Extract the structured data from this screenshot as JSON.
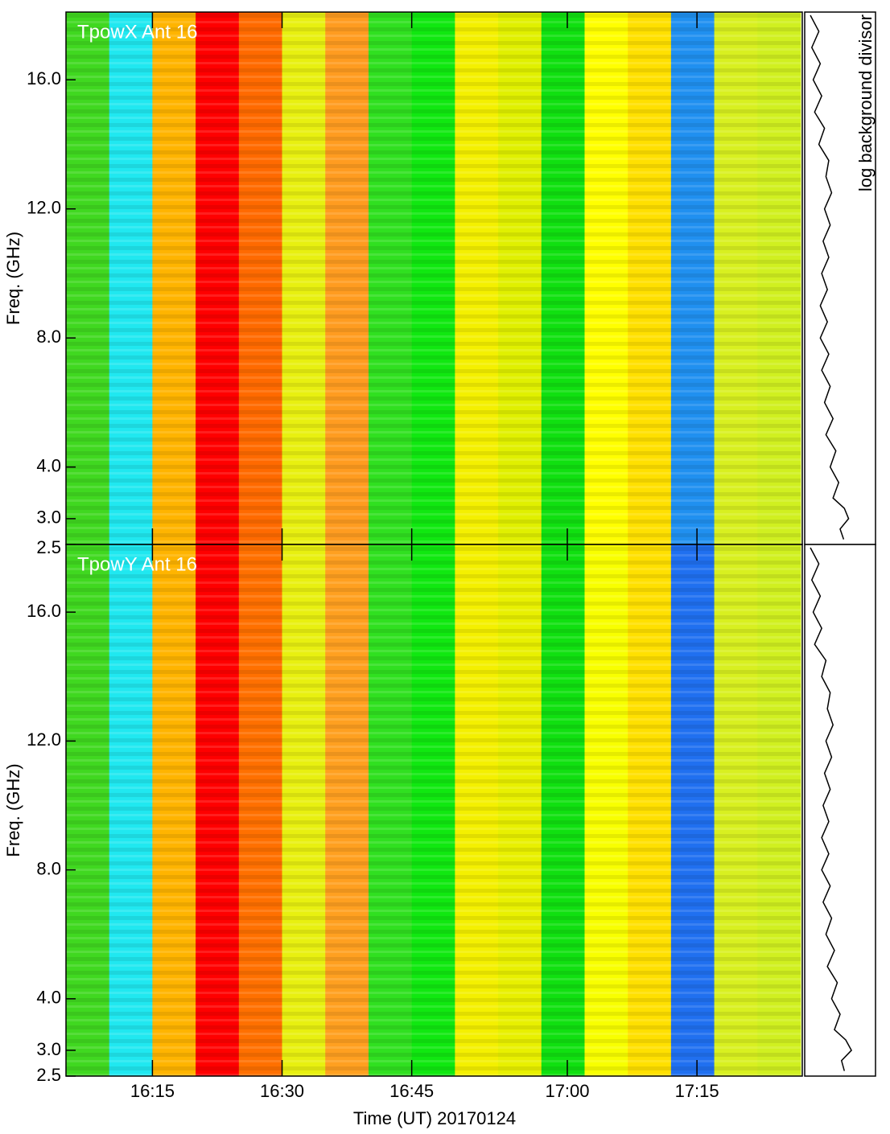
{
  "chart_data": {
    "type": "heatmap",
    "xlabel": "Time (UT) 20170124",
    "ylabel": "Freq. (GHz)",
    "profile_label": "log background divisor",
    "xlim": [
      0,
      17
    ],
    "xticks": [
      {
        "value": 2,
        "label": "16:15"
      },
      {
        "value": 5,
        "label": "16:30"
      },
      {
        "value": 8,
        "label": "16:45"
      },
      {
        "value": 11.6,
        "label": "17:00"
      },
      {
        "value": 14.6,
        "label": "17:15"
      }
    ],
    "ylim": [
      2.5,
      18.1
    ],
    "yticks": [
      {
        "value": 2.5,
        "label": "2.5"
      },
      {
        "value": 3.0,
        "label": "3.0"
      },
      {
        "value": 4.0,
        "label": "4.0"
      },
      {
        "value": 8.0,
        "label": "8.0"
      },
      {
        "value": 12.0,
        "label": "12.0"
      },
      {
        "value": 16.0,
        "label": "16.0"
      }
    ],
    "profile_xlim": [
      0,
      1
    ],
    "panels": [
      {
        "title": "TpowX Ant 16",
        "columns": [
          "#40d820",
          "#20e8f0",
          "#ffb400",
          "#ff0000",
          "#ff6a00",
          "#e8f010",
          "#ff9c20",
          "#30e020",
          "#10e810",
          "#f4f000",
          "#e0f000",
          "#10e010",
          "#ffff00",
          "#ffe000",
          "#2090f0",
          "#d8f020",
          "#d0f020"
        ],
        "profile": {
          "freqs": [
            18,
            17.5,
            17,
            16.5,
            16,
            15.5,
            15,
            14.5,
            14,
            13.5,
            13,
            12.5,
            12,
            11.5,
            11,
            10.5,
            10,
            9.5,
            9,
            8.5,
            8,
            7.5,
            7,
            6.5,
            6,
            5.5,
            5,
            4.5,
            4,
            3.7,
            3.4,
            3.2,
            3.0,
            2.8,
            2.6
          ],
          "values": [
            0.08,
            0.2,
            0.1,
            0.22,
            0.12,
            0.24,
            0.14,
            0.28,
            0.2,
            0.34,
            0.3,
            0.38,
            0.28,
            0.36,
            0.26,
            0.34,
            0.24,
            0.32,
            0.22,
            0.32,
            0.22,
            0.34,
            0.24,
            0.36,
            0.28,
            0.4,
            0.3,
            0.44,
            0.36,
            0.48,
            0.4,
            0.56,
            0.62,
            0.5,
            0.55
          ]
        }
      },
      {
        "title": "TpowY Ant 16",
        "columns": [
          "#40d820",
          "#20e8f0",
          "#ffb400",
          "#ff0000",
          "#ff7000",
          "#e8f010",
          "#ffa020",
          "#30e020",
          "#10e810",
          "#f4f000",
          "#e8f000",
          "#10e010",
          "#f8ff00",
          "#ffe000",
          "#2070f0",
          "#d8f020",
          "#d0f020"
        ],
        "profile": {
          "freqs": [
            18,
            17.5,
            17,
            16.5,
            16,
            15.5,
            15,
            14.5,
            14,
            13.5,
            13,
            12.5,
            12,
            11.5,
            11,
            10.5,
            10,
            9.5,
            9,
            8.5,
            8,
            7.5,
            7,
            6.5,
            6,
            5.5,
            5,
            4.5,
            4,
            3.7,
            3.4,
            3.2,
            3.0,
            2.8,
            2.6
          ],
          "values": [
            0.08,
            0.2,
            0.1,
            0.22,
            0.12,
            0.24,
            0.14,
            0.3,
            0.24,
            0.36,
            0.32,
            0.4,
            0.3,
            0.38,
            0.28,
            0.36,
            0.26,
            0.34,
            0.24,
            0.34,
            0.24,
            0.36,
            0.26,
            0.38,
            0.3,
            0.42,
            0.32,
            0.46,
            0.38,
            0.5,
            0.42,
            0.58,
            0.66,
            0.52,
            0.56
          ]
        }
      }
    ]
  }
}
